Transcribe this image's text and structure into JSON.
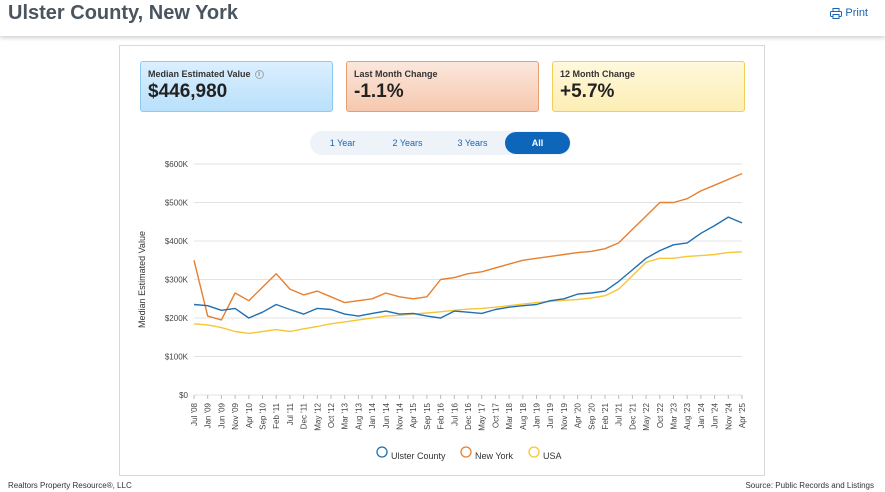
{
  "header": {
    "title": "Ulster County, New York",
    "print_label": "Print"
  },
  "stats": [
    {
      "label": "Median Estimated Value",
      "value": "$446,980"
    },
    {
      "label": "Last Month Change",
      "value": "-1.1%"
    },
    {
      "label": "12 Month Change",
      "value": "+5.7%"
    }
  ],
  "range_options": [
    "1 Year",
    "2 Years",
    "3 Years",
    "All"
  ],
  "range_selected": "All",
  "footer": {
    "left": "Realtors Property Resource®, LLC",
    "right_prefix": "Source:",
    "right": "Public Records and Listings"
  },
  "chart_data": {
    "type": "line",
    "ylabel": "Median Estimated Value",
    "xlabel": "",
    "ylim": [
      0,
      600000
    ],
    "yticks": [
      "$0",
      "$100K",
      "$200K",
      "$300K",
      "$400K",
      "$500K",
      "$600K"
    ],
    "x_tick_labels": [
      "Jul '08",
      "Jan '09",
      "Jun '09",
      "Nov '09",
      "Apr '10",
      "Sep '10",
      "Feb '11",
      "Jul '11",
      "Dec '11",
      "May '12",
      "Oct '12",
      "Mar '13",
      "Aug '13",
      "Jan '14",
      "Jun '14",
      "Nov '14",
      "Apr '15",
      "Sep '15",
      "Feb '16",
      "Jul '16",
      "Dec '16",
      "May '17",
      "Oct '17",
      "Mar '18",
      "Aug '18",
      "Jan '19",
      "Jun '19",
      "Nov '19",
      "Apr '20",
      "Sep '20",
      "Feb '21",
      "Jul '21",
      "Dec '21",
      "May '22",
      "Oct '22",
      "Mar '23",
      "Aug '23",
      "Jan '24",
      "Jun '24",
      "Nov '24",
      "Apr '25"
    ],
    "grid": true,
    "legend_position": "bottom",
    "series": [
      {
        "name": "Ulster County",
        "color": "#1f6fb5",
        "x": [
          "2008-07",
          "2009-01",
          "2009-06",
          "2009-11",
          "2010-04",
          "2010-09",
          "2011-02",
          "2011-07",
          "2011-12",
          "2012-05",
          "2012-10",
          "2013-03",
          "2013-08",
          "2014-01",
          "2014-06",
          "2014-11",
          "2015-04",
          "2015-09",
          "2016-02",
          "2016-07",
          "2016-12",
          "2017-05",
          "2017-10",
          "2018-03",
          "2018-08",
          "2019-01",
          "2019-06",
          "2019-11",
          "2020-04",
          "2020-09",
          "2021-02",
          "2021-07",
          "2021-12",
          "2022-05",
          "2022-10",
          "2023-03",
          "2023-08",
          "2024-01",
          "2024-06",
          "2024-11",
          "2025-04"
        ],
        "values": [
          235000,
          232000,
          220000,
          225000,
          200000,
          215000,
          235000,
          222000,
          210000,
          225000,
          222000,
          210000,
          205000,
          212000,
          218000,
          210000,
          212000,
          205000,
          200000,
          218000,
          215000,
          212000,
          222000,
          228000,
          232000,
          235000,
          245000,
          250000,
          262000,
          265000,
          270000,
          295000,
          325000,
          355000,
          375000,
          390000,
          395000,
          420000,
          440000,
          462000,
          447000
        ]
      },
      {
        "name": "New York",
        "color": "#e87f2f",
        "x": [
          "2008-07",
          "2009-01",
          "2009-06",
          "2009-11",
          "2010-04",
          "2010-09",
          "2011-02",
          "2011-07",
          "2011-12",
          "2012-05",
          "2012-10",
          "2013-03",
          "2013-08",
          "2014-01",
          "2014-06",
          "2014-11",
          "2015-04",
          "2015-09",
          "2016-02",
          "2016-07",
          "2016-12",
          "2017-05",
          "2017-10",
          "2018-03",
          "2018-08",
          "2019-01",
          "2019-06",
          "2019-11",
          "2020-04",
          "2020-09",
          "2021-02",
          "2021-07",
          "2021-12",
          "2022-05",
          "2022-10",
          "2023-03",
          "2023-08",
          "2024-01",
          "2024-06",
          "2024-11",
          "2025-04"
        ],
        "values": [
          350000,
          205000,
          195000,
          265000,
          245000,
          280000,
          315000,
          275000,
          260000,
          270000,
          255000,
          240000,
          245000,
          250000,
          265000,
          255000,
          250000,
          255000,
          300000,
          305000,
          315000,
          320000,
          330000,
          340000,
          350000,
          355000,
          360000,
          365000,
          370000,
          373000,
          380000,
          395000,
          430000,
          465000,
          500000,
          500000,
          510000,
          530000,
          545000,
          560000,
          575000
        ]
      },
      {
        "name": "USA",
        "color": "#f6c636",
        "x": [
          "2008-07",
          "2009-01",
          "2009-06",
          "2009-11",
          "2010-04",
          "2010-09",
          "2011-02",
          "2011-07",
          "2011-12",
          "2012-05",
          "2012-10",
          "2013-03",
          "2013-08",
          "2014-01",
          "2014-06",
          "2014-11",
          "2015-04",
          "2015-09",
          "2016-02",
          "2016-07",
          "2016-12",
          "2017-05",
          "2017-10",
          "2018-03",
          "2018-08",
          "2019-01",
          "2019-06",
          "2019-11",
          "2020-04",
          "2020-09",
          "2021-02",
          "2021-07",
          "2021-12",
          "2022-05",
          "2022-10",
          "2023-03",
          "2023-08",
          "2024-01",
          "2024-06",
          "2024-11",
          "2025-04"
        ],
        "values": [
          185000,
          182000,
          175000,
          165000,
          160000,
          165000,
          170000,
          165000,
          172000,
          178000,
          185000,
          190000,
          195000,
          200000,
          205000,
          207000,
          210000,
          213000,
          216000,
          220000,
          223000,
          225000,
          228000,
          232000,
          236000,
          240000,
          243000,
          246000,
          248000,
          252000,
          258000,
          275000,
          310000,
          345000,
          355000,
          355000,
          360000,
          362000,
          365000,
          370000,
          372000
        ]
      }
    ]
  }
}
